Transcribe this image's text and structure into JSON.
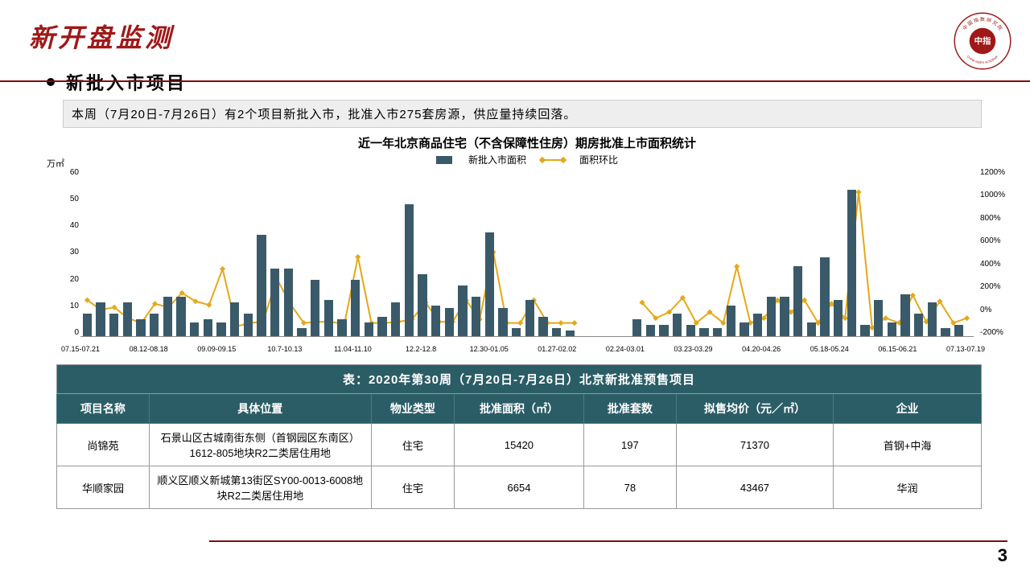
{
  "page": {
    "title": "新开盘监测",
    "number": "3"
  },
  "logo": {
    "outer_text": "中国指数研究院",
    "inner": "中指",
    "sub": "CHINA INDEX ACADEMY"
  },
  "section": {
    "title": "新批入市项目",
    "summary": "本周（7月20日-7月26日）有2个项目新批入市，批准入市275套房源，供应量持续回落。"
  },
  "chart": {
    "title": "近一年北京商品住宅（不含保障性住房）期房批准上市面积统计",
    "legend_bar": "新批入市面积",
    "legend_line": "面积环比",
    "y_left_unit": "万㎡",
    "y_left": {
      "min": 0,
      "max": 60,
      "ticks": [
        60,
        50,
        40,
        30,
        20,
        10,
        0
      ]
    },
    "y_right": {
      "min": -200,
      "max": 1200,
      "ticks": [
        "1200%",
        "1000%",
        "800%",
        "600%",
        "400%",
        "200%",
        "0%",
        "-200%"
      ]
    },
    "bar_color": "#3a5a6a",
    "line_color": "#e6a817",
    "x_labels_shown": [
      "07.15-07.21",
      "08.12-08.18",
      "09.09-09.15",
      "10.7-10.13",
      "11.04-11.10",
      "12.2-12.8",
      "12.30-01.05",
      "01.27-02.02",
      "02.24-03.01",
      "03.23-03.29",
      "04.20-04.26",
      "05.18-05.24",
      "06.15-06.21",
      "07.13-07.19"
    ],
    "bars": [
      8,
      12,
      8,
      12,
      6,
      8,
      14,
      14,
      5,
      6,
      5,
      12,
      8,
      36,
      24,
      24,
      3,
      20,
      13,
      6,
      20,
      5,
      7,
      12,
      47,
      22,
      11,
      10,
      18,
      14,
      37,
      10,
      3,
      13,
      7,
      3,
      2,
      0,
      0,
      0,
      0,
      6,
      4,
      4,
      8,
      4,
      3,
      3,
      11,
      5,
      8,
      14,
      14,
      25,
      5,
      28,
      13,
      52,
      4,
      13,
      5,
      15,
      8,
      12,
      3,
      4
    ],
    "line": [
      100,
      20,
      40,
      -50,
      -90,
      70,
      40,
      160,
      90,
      60,
      360,
      -120,
      -90,
      -80,
      280,
      70,
      -90,
      -80,
      -80,
      -100,
      460,
      -90,
      -90,
      -80,
      -60,
      80,
      -80,
      -80,
      100,
      -60,
      500,
      -90,
      -90,
      100,
      -90,
      -90,
      -90,
      null,
      null,
      null,
      null,
      80,
      -50,
      0,
      120,
      -90,
      0,
      -90,
      380,
      -90,
      -50,
      100,
      0,
      100,
      -90,
      70,
      -50,
      1000,
      -130,
      -50,
      -90,
      140,
      -80,
      90,
      -90,
      -50
    ]
  },
  "table": {
    "title": "表：2020年第30周（7月20日-7月26日）北京新批准预售项目",
    "headers": [
      "项目名称",
      "具体位置",
      "物业类型",
      "批准面积（㎡）",
      "批准套数",
      "拟售均价（元／㎡）",
      "企业"
    ],
    "col_widths": [
      "10%",
      "24%",
      "9%",
      "14%",
      "10%",
      "17%",
      "16%"
    ],
    "rows": [
      [
        "尚锦苑",
        "石景山区古城南街东侧（首钢园区东南区）1612-805地块R2二类居住用地",
        "住宅",
        "15420",
        "197",
        "71370",
        "首钢+中海"
      ],
      [
        "华顺家园",
        "顺义区顺义新城第13街区SY00-0013-6008地块R2二类居住用地",
        "住宅",
        "6654",
        "78",
        "43467",
        "华润"
      ]
    ]
  }
}
